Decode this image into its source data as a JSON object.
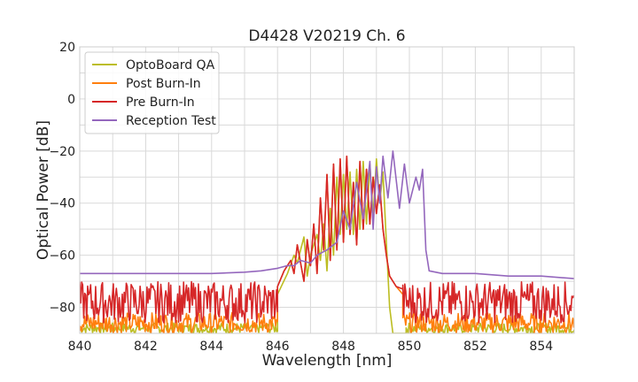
{
  "chart_data": {
    "type": "line",
    "title": "D4428 V20219 Ch. 6",
    "xlabel": "Wavelength [nm]",
    "ylabel": "Optical Power [dB]",
    "xlim": [
      840,
      855
    ],
    "ylim": [
      -90,
      20
    ],
    "xticks": [
      840,
      842,
      844,
      846,
      848,
      850,
      852,
      854
    ],
    "yticks": [
      20,
      0,
      -20,
      -40,
      -60,
      -80
    ],
    "yticklabels": [
      "20",
      "0",
      "−20",
      "−40",
      "−60",
      "−80"
    ],
    "grid": true,
    "legend_position": "top-left",
    "series": [
      {
        "name": "OptoBoard QA",
        "color": "#bcbd22",
        "noise_floor": [
          -86,
          -90
        ],
        "x": [
          846.0,
          846.3,
          846.5,
          846.6,
          846.8,
          846.9,
          847.0,
          847.2,
          847.3,
          847.4,
          847.5,
          847.6,
          847.7,
          847.8,
          847.9,
          848.0,
          848.1,
          848.2,
          848.3,
          848.4,
          848.5,
          848.6,
          848.7,
          848.8,
          848.9,
          849.0,
          849.1,
          849.2,
          849.3,
          849.4,
          849.5,
          849.7,
          849.9
        ],
        "y": [
          -75,
          -67,
          -60,
          -63,
          -53,
          -68,
          -60,
          -52,
          -62,
          -48,
          -66,
          -42,
          -60,
          -30,
          -52,
          -29,
          -50,
          -28,
          -52,
          -27,
          -50,
          -24,
          -48,
          -25,
          -45,
          -23,
          -40,
          -28,
          -55,
          -80,
          -90,
          -90,
          -90
        ]
      },
      {
        "name": "Post Burn-In",
        "color": "#ff7f0e",
        "noise_floor": [
          -82,
          -90
        ],
        "x": [
          846.0,
          846.2,
          846.4,
          846.5,
          846.6,
          846.8,
          846.9,
          847.0,
          847.1,
          847.2,
          847.3,
          847.4,
          847.5,
          847.6,
          847.7,
          847.8,
          847.9,
          848.0,
          848.1,
          848.2,
          848.3,
          848.4,
          848.5,
          848.6,
          848.7,
          848.8,
          848.9,
          849.0,
          849.1,
          849.2,
          849.3,
          849.4,
          849.6,
          849.8
        ],
        "y": [
          -72,
          -66,
          -62,
          -67,
          -56,
          -70,
          -54,
          -64,
          -48,
          -67,
          -38,
          -58,
          -29,
          -62,
          -25,
          -58,
          -23,
          -55,
          -22,
          -52,
          -32,
          -56,
          -24,
          -50,
          -27,
          -48,
          -30,
          -44,
          -33,
          -50,
          -60,
          -68,
          -72,
          -75
        ]
      },
      {
        "name": "Pre Burn-In",
        "color": "#d62728",
        "noise_floor": [
          -70,
          -86
        ],
        "x": [
          846.0,
          846.2,
          846.4,
          846.5,
          846.6,
          846.8,
          846.9,
          847.0,
          847.1,
          847.2,
          847.3,
          847.4,
          847.5,
          847.6,
          847.7,
          847.8,
          847.9,
          848.0,
          848.1,
          848.2,
          848.3,
          848.4,
          848.5,
          848.6,
          848.7,
          848.8,
          848.9,
          849.0,
          849.1,
          849.2,
          849.3,
          849.4,
          849.6,
          849.8
        ],
        "y": [
          -72,
          -66,
          -62,
          -67,
          -56,
          -70,
          -54,
          -64,
          -48,
          -67,
          -38,
          -58,
          -29,
          -62,
          -25,
          -58,
          -23,
          -55,
          -22,
          -52,
          -32,
          -56,
          -24,
          -50,
          -27,
          -48,
          -30,
          -44,
          -33,
          -50,
          -60,
          -68,
          -72,
          -73
        ]
      },
      {
        "name": "Reception Test",
        "color": "#9467bd",
        "x": [
          840.0,
          842.0,
          844.0,
          845.0,
          845.5,
          846.0,
          846.3,
          846.5,
          846.7,
          847.0,
          847.2,
          847.5,
          847.8,
          848.0,
          848.2,
          848.4,
          848.6,
          848.8,
          848.9,
          849.0,
          849.1,
          849.2,
          849.35,
          849.5,
          849.7,
          849.85,
          850.0,
          850.2,
          850.3,
          850.4,
          850.5,
          850.6,
          851.0,
          852.0,
          853.0,
          854.0,
          855.0
        ],
        "y": [
          -67,
          -67,
          -67,
          -66.5,
          -66,
          -65,
          -64,
          -64,
          -62,
          -63,
          -60,
          -58,
          -55,
          -43,
          -50,
          -32,
          -46,
          -24,
          -50,
          -26,
          -40,
          -22,
          -38,
          -20,
          -42,
          -25,
          -40,
          -30,
          -35,
          -27,
          -58,
          -66,
          -67,
          -67,
          -68,
          -68,
          -69
        ]
      }
    ]
  }
}
